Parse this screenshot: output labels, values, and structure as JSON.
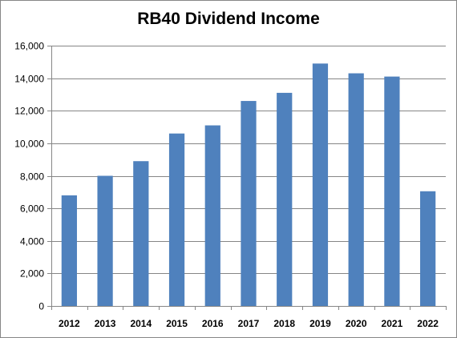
{
  "chart_data": {
    "type": "bar",
    "title": "RB40 Dividend Income",
    "xlabel": "",
    "ylabel": "",
    "categories": [
      "2012",
      "2013",
      "2014",
      "2015",
      "2016",
      "2017",
      "2018",
      "2019",
      "2020",
      "2021",
      "2022"
    ],
    "values": [
      6800,
      8000,
      8900,
      10600,
      11100,
      12600,
      13100,
      14900,
      14300,
      14100,
      7050
    ],
    "ylim": [
      0,
      16000
    ],
    "yticks": [
      "0",
      "2,000",
      "4,000",
      "6,000",
      "8,000",
      "10,000",
      "12,000",
      "14,000",
      "16,000"
    ],
    "ytick_values": [
      0,
      2000,
      4000,
      6000,
      8000,
      10000,
      12000,
      14000,
      16000
    ],
    "grid": true,
    "legend": "none",
    "bar_color": "#4f81bd",
    "grid_color": "#868686"
  }
}
